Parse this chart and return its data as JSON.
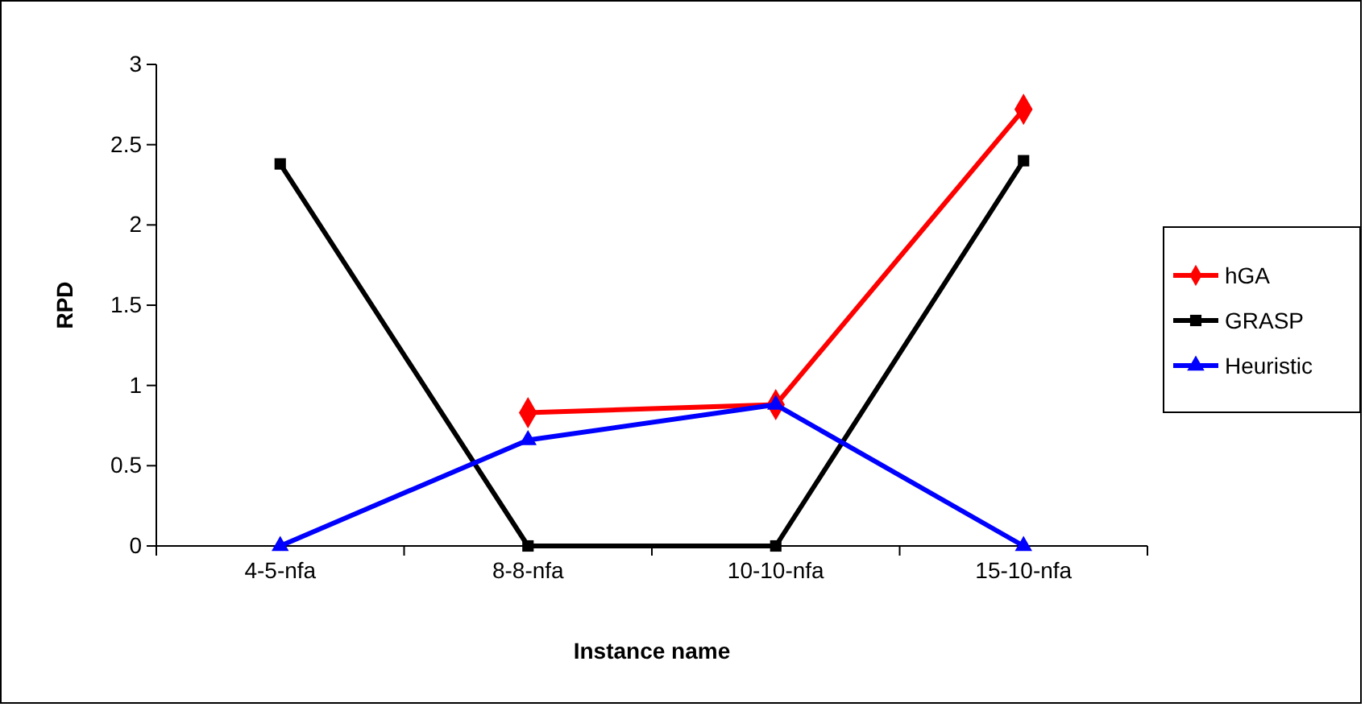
{
  "chart_data": {
    "type": "line",
    "xlabel": "Instance name",
    "ylabel": "RPD",
    "categories": [
      "4-5-nfa",
      "8-8-nfa",
      "10-10-nfa",
      "15-10-nfa"
    ],
    "series": [
      {
        "name": "hGA",
        "color": "#ff0000",
        "marker": "diamond",
        "values": [
          null,
          0.83,
          0.88,
          2.72
        ]
      },
      {
        "name": "GRASP",
        "color": "#000000",
        "marker": "square",
        "values": [
          2.38,
          0,
          0,
          2.4
        ]
      },
      {
        "name": "Heuristic",
        "color": "#0000ff",
        "marker": "triangle",
        "values": [
          0,
          0.66,
          0.88,
          0
        ]
      }
    ],
    "ylim": [
      0,
      3
    ],
    "yticks": [
      0,
      0.5,
      1,
      1.5,
      2,
      2.5,
      3
    ],
    "grid": false,
    "legend": "right",
    "line_style": "solid"
  }
}
